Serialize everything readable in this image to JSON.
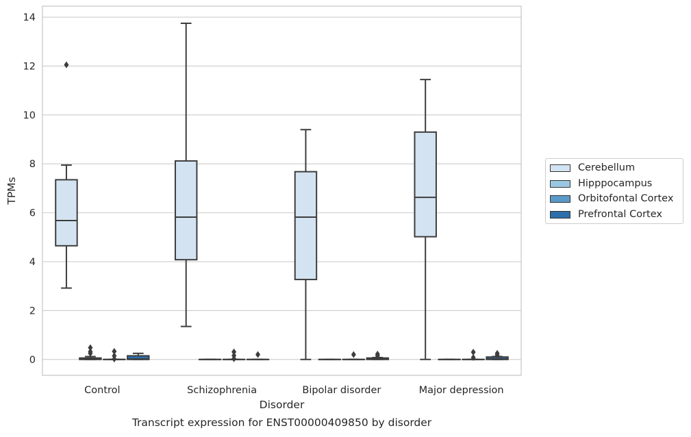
{
  "chart_data": {
    "type": "box",
    "title": "Transcript expression for ENST00000409850 by disorder",
    "xlabel": "Disorder",
    "ylabel": "TPMs",
    "ylim": [
      -0.65,
      14.45
    ],
    "yticks": [
      0,
      2,
      4,
      6,
      8,
      10,
      12,
      14
    ],
    "grid": "horizontal",
    "legend_position": "right",
    "categories": [
      "Control",
      "Schizophrenia",
      "Bipolar disorder",
      "Major depression"
    ],
    "series": [
      {
        "name": "Cerebellum",
        "color": "#d3e3f1",
        "boxes": [
          {
            "whisker_low": 2.92,
            "q1": 4.65,
            "median": 5.68,
            "q3": 7.35,
            "whisker_high": 7.95,
            "outliers": [
              12.05
            ]
          },
          {
            "whisker_low": 1.35,
            "q1": 4.08,
            "median": 5.82,
            "q3": 8.12,
            "whisker_high": 13.75,
            "outliers": []
          },
          {
            "whisker_low": 0.0,
            "q1": 3.27,
            "median": 5.82,
            "q3": 7.68,
            "whisker_high": 9.4,
            "outliers": []
          },
          {
            "whisker_low": 0.0,
            "q1": 5.02,
            "median": 6.63,
            "q3": 9.3,
            "whisker_high": 11.45,
            "outliers": []
          }
        ]
      },
      {
        "name": "Hipppocampus",
        "color": "#9ac8e0",
        "boxes": [
          {
            "whisker_low": 0.0,
            "q1": 0.0,
            "median": 0.02,
            "q3": 0.06,
            "whisker_high": 0.12,
            "outliers": [
              0.25,
              0.32,
              0.48
            ]
          },
          {
            "whisker_low": 0.0,
            "q1": 0.0,
            "median": 0.0,
            "q3": 0.0,
            "whisker_high": 0.0,
            "outliers": []
          },
          {
            "whisker_low": 0.0,
            "q1": 0.0,
            "median": 0.0,
            "q3": 0.0,
            "whisker_high": 0.0,
            "outliers": []
          },
          {
            "whisker_low": 0.0,
            "q1": 0.0,
            "median": 0.0,
            "q3": 0.0,
            "whisker_high": 0.0,
            "outliers": []
          }
        ]
      },
      {
        "name": "Orbitofontal Cortex",
        "color": "#5a9ac8",
        "boxes": [
          {
            "whisker_low": 0.0,
            "q1": 0.0,
            "median": 0.0,
            "q3": 0.0,
            "whisker_high": 0.0,
            "outliers": [
              0.02,
              0.15,
              0.33
            ]
          },
          {
            "whisker_low": 0.0,
            "q1": 0.0,
            "median": 0.0,
            "q3": 0.0,
            "whisker_high": 0.0,
            "outliers": [
              0.03,
              0.16,
              0.31
            ]
          },
          {
            "whisker_low": 0.0,
            "q1": 0.0,
            "median": 0.0,
            "q3": 0.0,
            "whisker_high": 0.0,
            "outliers": [
              0.2
            ]
          },
          {
            "whisker_low": 0.0,
            "q1": 0.0,
            "median": 0.0,
            "q3": 0.0,
            "whisker_high": 0.0,
            "outliers": [
              0.08,
              0.3
            ]
          }
        ]
      },
      {
        "name": "Prefrontal Cortex",
        "color": "#2c6fab",
        "boxes": [
          {
            "whisker_low": 0.0,
            "q1": 0.0,
            "median": 0.02,
            "q3": 0.15,
            "whisker_high": 0.25,
            "outliers": []
          },
          {
            "whisker_low": 0.0,
            "q1": 0.0,
            "median": 0.0,
            "q3": 0.0,
            "whisker_high": 0.0,
            "outliers": [
              0.2
            ]
          },
          {
            "whisker_low": 0.0,
            "q1": 0.0,
            "median": 0.02,
            "q3": 0.06,
            "whisker_high": 0.08,
            "outliers": [
              0.15,
              0.22
            ]
          },
          {
            "whisker_low": 0.0,
            "q1": 0.0,
            "median": 0.02,
            "q3": 0.1,
            "whisker_high": 0.12,
            "outliers": [
              0.18,
              0.25
            ]
          }
        ]
      }
    ]
  }
}
